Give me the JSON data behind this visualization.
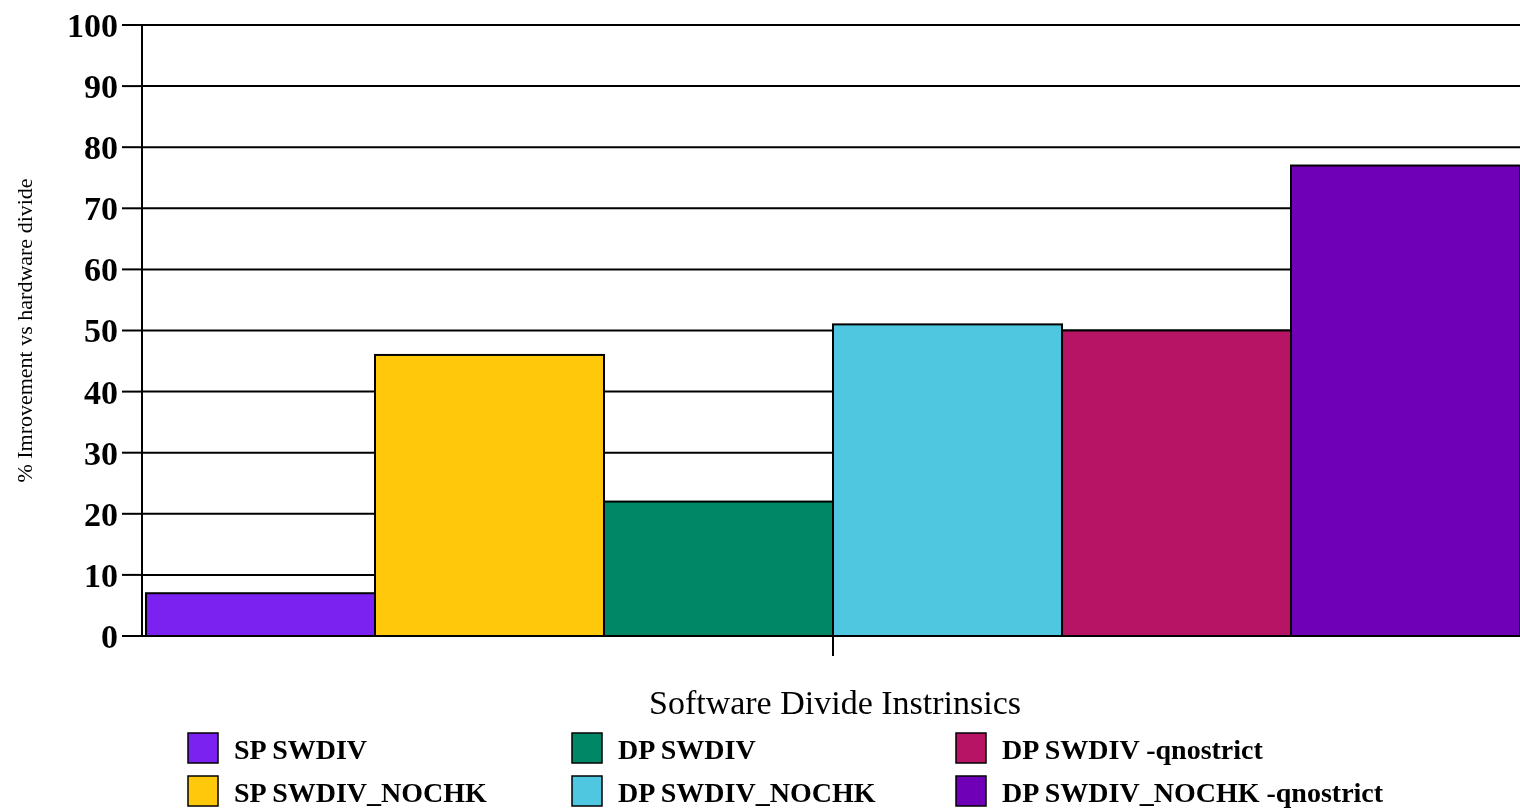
{
  "chart_data": {
    "type": "bar",
    "xlabel": "Software Divide Instrinsics",
    "ylabel": "% Imrovement vs hardware divide",
    "categories": [
      null
    ],
    "series": [
      {
        "name": "SP SWDIV",
        "color": "#7b22f0",
        "values": [
          7
        ]
      },
      {
        "name": "SP SWDIV_NOCHK",
        "color": "#ffc80a",
        "values": [
          46
        ]
      },
      {
        "name": "DP SWDIV",
        "color": "#008866",
        "values": [
          22
        ]
      },
      {
        "name": "DP SWDIV_NOCHK",
        "color": "#4fc7e0",
        "values": [
          51
        ]
      },
      {
        "name": "DP SWDIV -qnostrict",
        "color": "#b81466",
        "values": [
          50
        ]
      },
      {
        "name": "DP SWDIV_NOCHK -qnostrict",
        "color": "#7000b8",
        "values": [
          77
        ]
      }
    ],
    "ylim": [
      0,
      100
    ],
    "yticks": [
      0,
      10,
      20,
      30,
      40,
      50,
      60,
      70,
      80,
      90,
      100
    ],
    "grid": "y",
    "legend": "bottom"
  }
}
